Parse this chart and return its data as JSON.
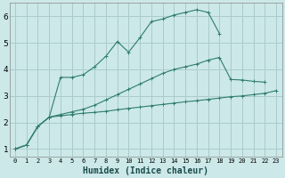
{
  "xlabel": "Humidex (Indice chaleur)",
  "bg_color": "#cce8e8",
  "grid_color": "#aacccc",
  "line_color": "#2e7d6e",
  "xlim": [
    -0.5,
    23.5
  ],
  "ylim": [
    0.7,
    6.5
  ],
  "xticks": [
    0,
    1,
    2,
    3,
    4,
    5,
    6,
    7,
    8,
    9,
    10,
    11,
    12,
    13,
    14,
    15,
    16,
    17,
    18,
    19,
    20,
    21,
    22,
    23
  ],
  "yticks": [
    1,
    2,
    3,
    4,
    5,
    6
  ],
  "series": [
    {
      "x": [
        0,
        1,
        2,
        3,
        4,
        5,
        6,
        7,
        8,
        9,
        10,
        11,
        12,
        13,
        14,
        15,
        16,
        17,
        18
      ],
      "y": [
        1.0,
        1.15,
        1.85,
        2.2,
        3.7,
        3.7,
        3.8,
        4.1,
        4.5,
        5.05,
        4.65,
        5.2,
        5.8,
        5.9,
        6.05,
        6.15,
        6.25,
        6.15,
        5.35
      ]
    },
    {
      "x": [
        0,
        1,
        2,
        3,
        4,
        5,
        6,
        7,
        8,
        9,
        10,
        11,
        12,
        13,
        14,
        15,
        16,
        17,
        18,
        19,
        20,
        21,
        22,
        23
      ],
      "y": [
        1.0,
        1.15,
        1.85,
        2.2,
        2.25,
        2.3,
        2.35,
        2.38,
        2.42,
        2.48,
        2.53,
        2.58,
        2.63,
        2.68,
        2.73,
        2.78,
        2.82,
        2.87,
        2.92,
        2.97,
        3.0,
        3.05,
        3.1,
        3.2
      ]
    },
    {
      "x": [
        0,
        1,
        2,
        3,
        4,
        5,
        6,
        7,
        8,
        9,
        10,
        11,
        12,
        13,
        14,
        15,
        16,
        17,
        18,
        19,
        20,
        21,
        22
      ],
      "y": [
        1.0,
        1.15,
        1.85,
        2.2,
        2.3,
        2.4,
        2.5,
        2.65,
        2.85,
        3.05,
        3.25,
        3.45,
        3.65,
        3.85,
        4.0,
        4.1,
        4.2,
        4.35,
        4.45,
        3.62,
        3.6,
        3.55,
        3.52
      ]
    }
  ]
}
